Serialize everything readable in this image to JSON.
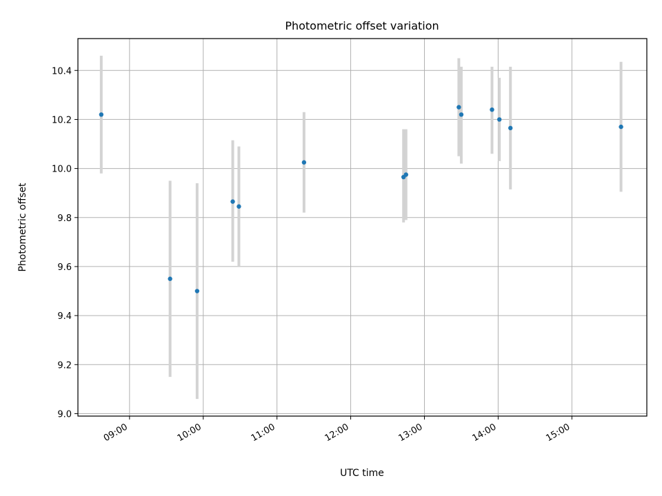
{
  "chart_data": {
    "type": "scatter",
    "title": "Photometric offset variation",
    "xlabel": "UTC time",
    "ylabel": "Photometric offset",
    "x_axis_kind": "time-of-day (UTC)",
    "x_ticks": [
      "09:00",
      "10:00",
      "11:00",
      "12:00",
      "13:00",
      "14:00",
      "15:00"
    ],
    "xlim": [
      "08:18",
      "16:01"
    ],
    "y_ticks": [
      9.0,
      9.2,
      9.4,
      9.6,
      9.8,
      10.0,
      10.2,
      10.4
    ],
    "ylim": [
      8.99,
      10.53
    ],
    "grid": true,
    "marker_color": "#1f77b4",
    "errorbar_color": "#d3d3d3",
    "series": [
      {
        "points": [
          {
            "x": "08:37",
            "y": 10.22,
            "y_low": 9.98,
            "y_high": 10.46
          },
          {
            "x": "09:33",
            "y": 9.55,
            "y_low": 9.15,
            "y_high": 9.95
          },
          {
            "x": "09:55",
            "y": 9.5,
            "y_low": 9.06,
            "y_high": 9.94
          },
          {
            "x": "10:24",
            "y": 9.865,
            "y_low": 9.62,
            "y_high": 10.115
          },
          {
            "x": "10:29",
            "y": 9.845,
            "y_low": 9.6,
            "y_high": 10.09
          },
          {
            "x": "11:22",
            "y": 10.025,
            "y_low": 9.82,
            "y_high": 10.23
          },
          {
            "x": "12:43",
            "y": 9.965,
            "y_low": 9.78,
            "y_high": 10.16
          },
          {
            "x": "12:45",
            "y": 9.975,
            "y_low": 9.79,
            "y_high": 10.16
          },
          {
            "x": "13:28",
            "y": 10.25,
            "y_low": 10.05,
            "y_high": 10.45
          },
          {
            "x": "13:30",
            "y": 10.22,
            "y_low": 10.02,
            "y_high": 10.415
          },
          {
            "x": "13:55",
            "y": 10.24,
            "y_low": 10.06,
            "y_high": 10.415
          },
          {
            "x": "14:01",
            "y": 10.2,
            "y_low": 10.03,
            "y_high": 10.37
          },
          {
            "x": "14:10",
            "y": 10.165,
            "y_low": 9.915,
            "y_high": 10.415
          },
          {
            "x": "15:40",
            "y": 10.17,
            "y_low": 9.905,
            "y_high": 10.435
          }
        ]
      }
    ]
  }
}
